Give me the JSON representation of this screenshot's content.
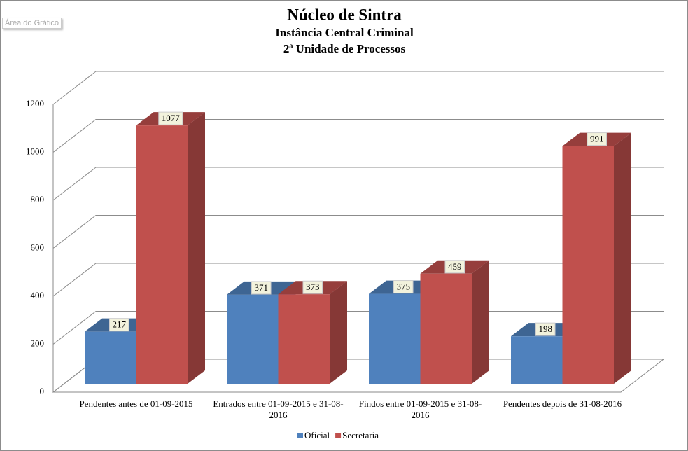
{
  "chart_data": {
    "type": "bar3d",
    "title": "Núcleo de Sintra",
    "subtitle": [
      "Instância Central Criminal",
      "2ª Unidade de Processos"
    ],
    "annotations": [
      "Área do Gráfico"
    ],
    "categories": [
      "Pendentes antes de 01-09-2015",
      "Entrados entre 01-09-2015 e 31-08-2016",
      "Findos entre 01-09-2015 e 31-08-2016",
      "Pendentes depois de 31-08-2016"
    ],
    "series": [
      {
        "name": "Oficial",
        "color": "#4f81bd",
        "values": [
          217,
          371,
          375,
          198
        ]
      },
      {
        "name": "Secretaria",
        "color": "#c0504d",
        "values": [
          1077,
          373,
          459,
          991
        ]
      }
    ],
    "ylim": [
      0,
      1200
    ],
    "yticks": [
      0,
      200,
      400,
      600,
      800,
      1000,
      1200
    ],
    "grid": true,
    "legend": "bottom"
  }
}
